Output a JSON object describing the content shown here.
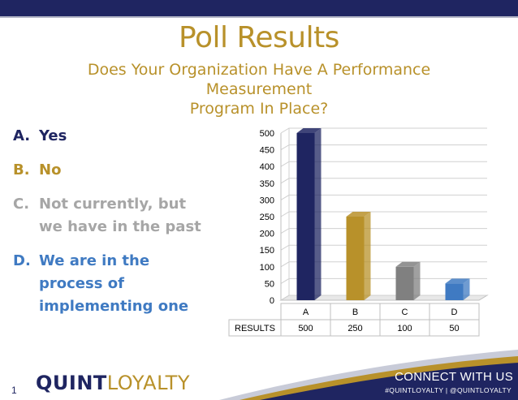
{
  "slide": {
    "title": "Poll Results",
    "subtitle_line1": "Does Your Organization Have A Performance Measurement",
    "subtitle_line2": "Program In Place?",
    "page_number": "1"
  },
  "answers": [
    {
      "letter": "A.",
      "line1": "Yes",
      "line2": "",
      "line3": "",
      "color": "#1f2561"
    },
    {
      "letter": "B.",
      "line1": "No",
      "line2": "",
      "line3": "",
      "color": "#b8912a"
    },
    {
      "letter": "C.",
      "line1": "Not currently, but",
      "line2": "we have in the past",
      "line3": "",
      "color": "#a6a6a6"
    },
    {
      "letter": "D.",
      "line1": "We are in the",
      "line2": "process of",
      "line3": "implementing one",
      "color": "#3f7ac2"
    }
  ],
  "footer": {
    "logo_part1": "QUINT",
    "logo_part2": "LOYALTY",
    "cta_title": "CONNECT WITH US",
    "cta_sub": "#QUINTLOYALTY  |  @QUINTLOYALTY"
  },
  "chart_data": {
    "type": "bar",
    "categories": [
      "A",
      "B",
      "C",
      "D"
    ],
    "series": [
      {
        "name": "RESULTS",
        "values": [
          500,
          250,
          100,
          50
        ]
      }
    ],
    "colors": [
      "#1f2561",
      "#b8912a",
      "#808080",
      "#3f7ac2"
    ],
    "ylim": [
      0,
      500
    ],
    "yticks": [
      "0",
      "50",
      "100",
      "150",
      "200",
      "250",
      "300",
      "350",
      "400",
      "450",
      "500"
    ],
    "grid": true,
    "data_table": true
  }
}
